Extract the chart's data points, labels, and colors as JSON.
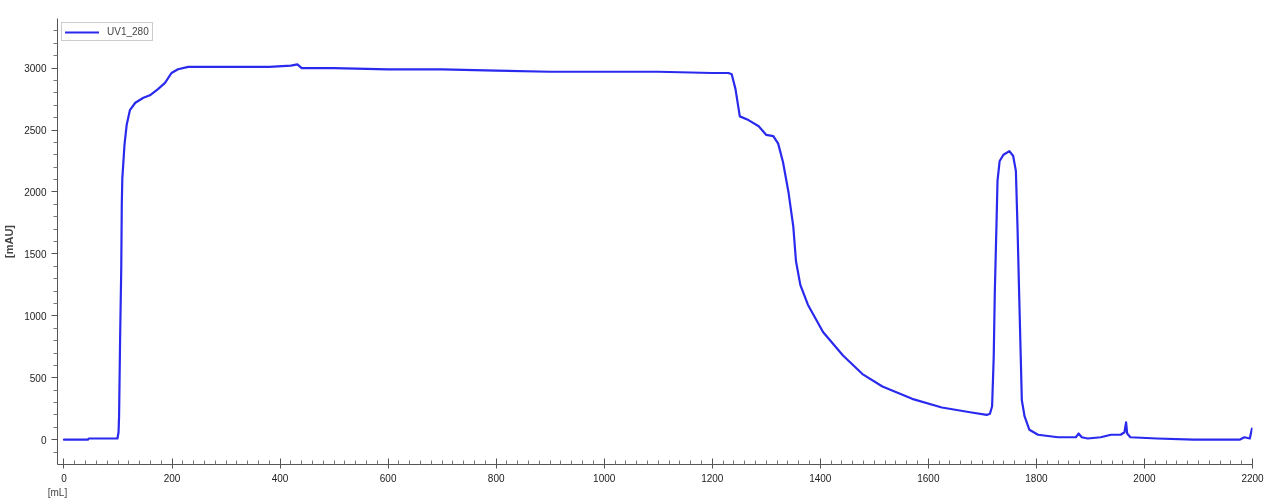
{
  "chart_data": {
    "type": "line",
    "xlabel": "[mL]",
    "ylabel": "[mAU]",
    "legend": "top left",
    "xlim": [
      -12,
      2200
    ],
    "ylim": [
      -200,
      3400
    ],
    "xticks": [
      0,
      {
        "value": 20,
        "label": null
      },
      {
        "value": 40,
        "label": null
      },
      {
        "value": 60,
        "label": null
      },
      {
        "value": 80,
        "label": null
      },
      {
        "value": 100,
        "label": null
      },
      {
        "value": 120,
        "label": null
      },
      {
        "value": 140,
        "label": null
      },
      {
        "value": 160,
        "label": null
      },
      {
        "value": 180,
        "label": null
      },
      200,
      {
        "value": 220,
        "label": null
      },
      {
        "value": 240,
        "label": null
      },
      {
        "value": 260,
        "label": null
      },
      {
        "value": 280,
        "label": null
      },
      {
        "value": 300,
        "label": null
      },
      {
        "value": 320,
        "label": null
      },
      {
        "value": 340,
        "label": null
      },
      {
        "value": 360,
        "label": null
      },
      {
        "value": 380,
        "label": null
      },
      400,
      {
        "value": 420,
        "label": null
      },
      {
        "value": 440,
        "label": null
      },
      {
        "value": 460,
        "label": null
      },
      {
        "value": 480,
        "label": null
      },
      {
        "value": 500,
        "label": null
      },
      {
        "value": 520,
        "label": null
      },
      {
        "value": 540,
        "label": null
      },
      {
        "value": 560,
        "label": null
      },
      {
        "value": 580,
        "label": null
      },
      600,
      {
        "value": 620,
        "label": null
      },
      {
        "value": 640,
        "label": null
      },
      {
        "value": 660,
        "label": null
      },
      {
        "value": 680,
        "label": null
      },
      {
        "value": 700,
        "label": null
      },
      {
        "value": 720,
        "label": null
      },
      {
        "value": 740,
        "label": null
      },
      {
        "value": 760,
        "label": null
      },
      {
        "value": 780,
        "label": null
      },
      800,
      {
        "value": 820,
        "label": null
      },
      {
        "value": 840,
        "label": null
      },
      {
        "value": 860,
        "label": null
      },
      {
        "value": 880,
        "label": null
      },
      {
        "value": 900,
        "label": null
      },
      {
        "value": 920,
        "label": null
      },
      {
        "value": 940,
        "label": null
      },
      {
        "value": 960,
        "label": null
      },
      {
        "value": 980,
        "label": null
      },
      1000,
      {
        "value": 1020,
        "label": null
      },
      {
        "value": 1040,
        "label": null
      },
      {
        "value": 1060,
        "label": null
      },
      {
        "value": 1080,
        "label": null
      },
      {
        "value": 1100,
        "label": null
      },
      {
        "value": 1120,
        "label": null
      },
      {
        "value": 1140,
        "label": null
      },
      {
        "value": 1160,
        "label": null
      },
      {
        "value": 1180,
        "label": null
      },
      1200,
      {
        "value": 1220,
        "label": null
      },
      {
        "value": 1240,
        "label": null
      },
      {
        "value": 1260,
        "label": null
      },
      {
        "value": 1280,
        "label": null
      },
      {
        "value": 1300,
        "label": null
      },
      {
        "value": 1320,
        "label": null
      },
      {
        "value": 1340,
        "label": null
      },
      {
        "value": 1360,
        "label": null
      },
      {
        "value": 1380,
        "label": null
      },
      1400,
      {
        "value": 1420,
        "label": null
      },
      {
        "value": 1440,
        "label": null
      },
      {
        "value": 1460,
        "label": null
      },
      {
        "value": 1480,
        "label": null
      },
      {
        "value": 1500,
        "label": null
      },
      {
        "value": 1520,
        "label": null
      },
      {
        "value": 1540,
        "label": null
      },
      {
        "value": 1560,
        "label": null
      },
      {
        "value": 1580,
        "label": null
      },
      1600,
      {
        "value": 1620,
        "label": null
      },
      {
        "value": 1640,
        "label": null
      },
      {
        "value": 1660,
        "label": null
      },
      {
        "value": 1680,
        "label": null
      },
      {
        "value": 1700,
        "label": null
      },
      {
        "value": 1720,
        "label": null
      },
      {
        "value": 1740,
        "label": null
      },
      {
        "value": 1760,
        "label": null
      },
      {
        "value": 1780,
        "label": null
      },
      1800,
      {
        "value": 1820,
        "label": null
      },
      {
        "value": 1840,
        "label": null
      },
      {
        "value": 1860,
        "label": null
      },
      {
        "value": 1880,
        "label": null
      },
      {
        "value": 1900,
        "label": null
      },
      {
        "value": 1920,
        "label": null
      },
      {
        "value": 1940,
        "label": null
      },
      {
        "value": 1960,
        "label": null
      },
      {
        "value": 1980,
        "label": null
      },
      2000,
      {
        "value": 2020,
        "label": null
      },
      {
        "value": 2040,
        "label": null
      },
      {
        "value": 2060,
        "label": null
      },
      {
        "value": 2080,
        "label": null
      },
      {
        "value": 2100,
        "label": null
      },
      {
        "value": 2120,
        "label": null
      },
      {
        "value": 2140,
        "label": null
      },
      {
        "value": 2160,
        "label": null
      },
      {
        "value": 2180,
        "label": null
      },
      2200
    ],
    "yticks": [
      {
        "value": -100,
        "label": null
      },
      0,
      {
        "value": 100,
        "label": null
      },
      {
        "value": 200,
        "label": null
      },
      {
        "value": 300,
        "label": null
      },
      {
        "value": 400,
        "label": null
      },
      500,
      {
        "value": 600,
        "label": null
      },
      {
        "value": 700,
        "label": null
      },
      {
        "value": 800,
        "label": null
      },
      {
        "value": 900,
        "label": null
      },
      1000,
      {
        "value": 1100,
        "label": null
      },
      {
        "value": 1200,
        "label": null
      },
      {
        "value": 1300,
        "label": null
      },
      {
        "value": 1400,
        "label": null
      },
      1500,
      {
        "value": 1600,
        "label": null
      },
      {
        "value": 1700,
        "label": null
      },
      {
        "value": 1800,
        "label": null
      },
      {
        "value": 1900,
        "label": null
      },
      2000,
      {
        "value": 2100,
        "label": null
      },
      {
        "value": 2200,
        "label": null
      },
      {
        "value": 2300,
        "label": null
      },
      {
        "value": 2400,
        "label": null
      },
      2500,
      {
        "value": 2600,
        "label": null
      },
      {
        "value": 2700,
        "label": null
      },
      {
        "value": 2800,
        "label": null
      },
      {
        "value": 2900,
        "label": null
      },
      3000,
      {
        "value": 3100,
        "label": null
      },
      {
        "value": 3200,
        "label": null
      },
      {
        "value": 3300,
        "label": null
      }
    ],
    "series": [
      {
        "name": "UV1_280",
        "color": "#2a2aee",
        "x": [
          0,
          44,
          46,
          99,
          101,
          102,
          104,
          106,
          107,
          108,
          112,
          116,
          122,
          132,
          147,
          159,
          174,
          187,
          199,
          211,
          230,
          260,
          300,
          340,
          380,
          420,
          432,
          440,
          500,
          600,
          700,
          800,
          900,
          1000,
          1100,
          1200,
          1230,
          1236,
          1243,
          1251,
          1267,
          1286,
          1300,
          1313,
          1322,
          1331,
          1341,
          1350,
          1355,
          1363,
          1377,
          1405,
          1442,
          1478,
          1515,
          1570,
          1625,
          1680,
          1708,
          1714,
          1718,
          1721,
          1723,
          1726,
          1728,
          1732,
          1739,
          1750,
          1757,
          1762,
          1765,
          1768,
          1771,
          1773,
          1778,
          1787,
          1803,
          1840,
          1873,
          1878,
          1884,
          1895,
          1919,
          1938,
          1956,
          1963,
          1966,
          1968,
          1974,
          2023,
          2091,
          2103,
          2176,
          2185,
          2195,
          2199
        ],
        "values": [
          0,
          0,
          10,
          10,
          60,
          190,
          850,
          1380,
          1900,
          2110,
          2380,
          2540,
          2660,
          2720,
          2760,
          2780,
          2830,
          2880,
          2960,
          2990,
          3010,
          3010,
          3010,
          3010,
          3010,
          3020,
          3030,
          3000,
          3000,
          2990,
          2990,
          2980,
          2970,
          2970,
          2970,
          2960,
          2960,
          2950,
          2830,
          2610,
          2580,
          2530,
          2460,
          2450,
          2390,
          2240,
          2000,
          1720,
          1440,
          1250,
          1090,
          870,
          680,
          530,
          430,
          330,
          260,
          220,
          200,
          210,
          270,
          670,
          1190,
          1720,
          2090,
          2250,
          2300,
          2330,
          2290,
          2170,
          1720,
          1190,
          670,
          320,
          190,
          80,
          40,
          20,
          20,
          50,
          20,
          10,
          20,
          40,
          40,
          60,
          140,
          50,
          20,
          10,
          0,
          0,
          0,
          20,
          10,
          90
        ]
      }
    ]
  }
}
